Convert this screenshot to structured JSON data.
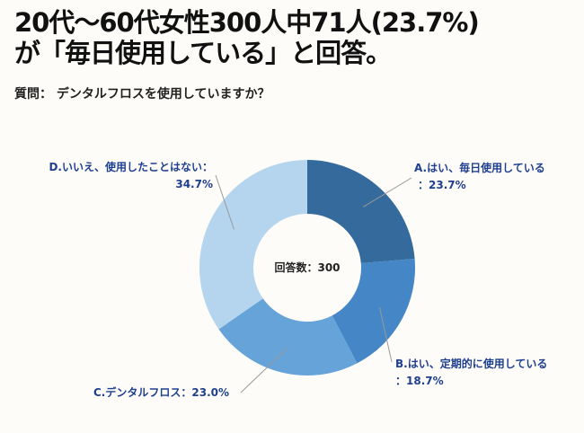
{
  "title_line1": "20代〜60代女性300人中71人(23.7%)",
  "title_line2": "が「毎日使用している」と回答。",
  "question": "質問：  デンタルフロスを使用していますか？",
  "chart_data": {
    "type": "pie",
    "donut": true,
    "center_label": "回答数：300",
    "categories": [
      "A.はい、毎日使用している",
      "B.はい、定期的に使用している",
      "C.デンタルフロス",
      "D.いいえ、使用したことはない"
    ],
    "values": [
      23.7,
      18.7,
      23.0,
      34.7
    ],
    "unit": "%",
    "colors": [
      "#356a9c",
      "#4486c6",
      "#66a3d9",
      "#b5d5ee"
    ],
    "labels": [
      {
        "line1": "A.はい、毎日使用している",
        "line2": "：23.7%"
      },
      {
        "line1": "B.はい、定期的に使用している",
        "line2": "：18.7%"
      },
      {
        "line1": "C.デンタルフロス：23.0%",
        "line2": ""
      },
      {
        "line1": "D.いいえ、使用したことはない：",
        "line2": "34.7%"
      }
    ]
  }
}
